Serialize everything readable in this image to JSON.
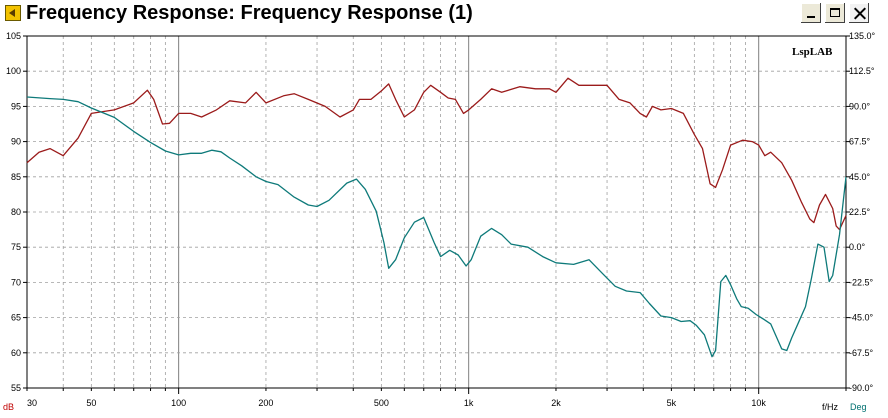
{
  "window": {
    "title": "Frequency Response: Frequency Response (1)",
    "buttons": {
      "minimize": "minimize-icon",
      "maximize": "maximize-icon",
      "close": "close-icon"
    }
  },
  "chart_data": {
    "type": "line",
    "brand_label": "LspLAB",
    "x_unit_label": "f/Hz",
    "y_left_unit": "dB",
    "y_right_unit": "Deg",
    "x_scale": "log",
    "xlim": [
      30,
      20000
    ],
    "ylim_left": [
      55,
      105
    ],
    "ylim_right": [
      -90,
      135
    ],
    "x_tick_labels": [
      {
        "v": 30,
        "t": "30"
      },
      {
        "v": 50,
        "t": "50"
      },
      {
        "v": 100,
        "t": "100"
      },
      {
        "v": 200,
        "t": "200"
      },
      {
        "v": 500,
        "t": "500"
      },
      {
        "v": 1000,
        "t": "1k"
      },
      {
        "v": 2000,
        "t": "2k"
      },
      {
        "v": 5000,
        "t": "5k"
      },
      {
        "v": 10000,
        "t": "10k"
      }
    ],
    "y_left_ticks": [
      55,
      60,
      65,
      70,
      75,
      80,
      85,
      90,
      95,
      100,
      105
    ],
    "y_right_tick_labels": [
      {
        "v": 135,
        "t": "135.0°"
      },
      {
        "v": 112.5,
        "t": "112.5°"
      },
      {
        "v": 90,
        "t": "90.0°"
      },
      {
        "v": 67.5,
        "t": "67.5°"
      },
      {
        "v": 45,
        "t": "45.0°"
      },
      {
        "v": 22.5,
        "t": "22.5°"
      },
      {
        "v": 0,
        "t": "0.0°"
      },
      {
        "v": -22.5,
        "t": "-22.5°"
      },
      {
        "v": -45,
        "t": "-45.0°"
      },
      {
        "v": -67.5,
        "t": "-67.5°"
      },
      {
        "v": -90,
        "t": "-90.0°"
      }
    ],
    "grid": true,
    "colors": {
      "magnitude": "#9b1b1b",
      "phase": "#0e7a7a",
      "grid_major": "#808080",
      "grid_minor": "#a0a0a0"
    },
    "series": [
      {
        "axis": "left",
        "points": [
          [
            30,
            87
          ],
          [
            33,
            88.5
          ],
          [
            36,
            89
          ],
          [
            40,
            88
          ],
          [
            45,
            90.5
          ],
          [
            50,
            94
          ],
          [
            60,
            94.5
          ],
          [
            70,
            95.5
          ],
          [
            78,
            97.3
          ],
          [
            82,
            96
          ],
          [
            88,
            92.5
          ],
          [
            93,
            92.6
          ],
          [
            100,
            94
          ],
          [
            110,
            94
          ],
          [
            120,
            93.5
          ],
          [
            135,
            94.5
          ],
          [
            150,
            95.8
          ],
          [
            170,
            95.5
          ],
          [
            185,
            97
          ],
          [
            200,
            95.5
          ],
          [
            230,
            96.5
          ],
          [
            250,
            96.8
          ],
          [
            280,
            96
          ],
          [
            320,
            95
          ],
          [
            360,
            93.5
          ],
          [
            400,
            94.5
          ],
          [
            420,
            96
          ],
          [
            460,
            96
          ],
          [
            500,
            97.2
          ],
          [
            530,
            98.2
          ],
          [
            560,
            96
          ],
          [
            600,
            93.5
          ],
          [
            650,
            94.5
          ],
          [
            700,
            97
          ],
          [
            740,
            98
          ],
          [
            800,
            97
          ],
          [
            850,
            96.2
          ],
          [
            900,
            96
          ],
          [
            960,
            94
          ],
          [
            1000,
            94.5
          ],
          [
            1100,
            96
          ],
          [
            1200,
            97.5
          ],
          [
            1300,
            97
          ],
          [
            1500,
            97.8
          ],
          [
            1700,
            97.5
          ],
          [
            1900,
            97.5
          ],
          [
            2000,
            97
          ],
          [
            2200,
            99
          ],
          [
            2400,
            98
          ],
          [
            2700,
            98
          ],
          [
            3000,
            98
          ],
          [
            3300,
            96
          ],
          [
            3600,
            95.5
          ],
          [
            3900,
            94
          ],
          [
            4100,
            93.5
          ],
          [
            4300,
            95
          ],
          [
            4600,
            94.5
          ],
          [
            5000,
            94.7
          ],
          [
            5500,
            94
          ],
          [
            6000,
            91
          ],
          [
            6400,
            89
          ],
          [
            6800,
            84
          ],
          [
            7100,
            83.5
          ],
          [
            7500,
            86
          ],
          [
            8000,
            89.5
          ],
          [
            8800,
            90.2
          ],
          [
            9500,
            90
          ],
          [
            10000,
            89.5
          ],
          [
            10500,
            88
          ],
          [
            11000,
            88.5
          ],
          [
            12000,
            87
          ],
          [
            13000,
            84.5
          ],
          [
            14000,
            81.5
          ],
          [
            15000,
            79
          ],
          [
            15500,
            78.5
          ],
          [
            16200,
            81
          ],
          [
            17000,
            82.5
          ],
          [
            18000,
            80.5
          ],
          [
            18500,
            78
          ],
          [
            19000,
            77.5
          ],
          [
            20000,
            79.5
          ]
        ]
      },
      {
        "axis": "right",
        "points": [
          [
            30,
            96
          ],
          [
            36,
            95
          ],
          [
            40,
            94.5
          ],
          [
            45,
            93
          ],
          [
            50,
            89
          ],
          [
            60,
            83
          ],
          [
            70,
            74
          ],
          [
            80,
            67
          ],
          [
            90,
            61.5
          ],
          [
            100,
            59
          ],
          [
            110,
            60
          ],
          [
            120,
            60
          ],
          [
            130,
            62
          ],
          [
            140,
            61
          ],
          [
            150,
            57
          ],
          [
            165,
            52
          ],
          [
            185,
            45
          ],
          [
            200,
            42
          ],
          [
            220,
            40
          ],
          [
            250,
            32
          ],
          [
            280,
            27
          ],
          [
            300,
            26
          ],
          [
            330,
            30
          ],
          [
            380,
            41
          ],
          [
            410,
            43.5
          ],
          [
            440,
            37
          ],
          [
            480,
            23
          ],
          [
            510,
            3
          ],
          [
            530,
            -13.5
          ],
          [
            560,
            -8
          ],
          [
            600,
            6
          ],
          [
            650,
            16
          ],
          [
            700,
            19
          ],
          [
            760,
            3
          ],
          [
            800,
            -6
          ],
          [
            860,
            -2
          ],
          [
            920,
            -5
          ],
          [
            980,
            -12
          ],
          [
            1020,
            -8
          ],
          [
            1100,
            7
          ],
          [
            1200,
            12
          ],
          [
            1300,
            8
          ],
          [
            1400,
            2
          ],
          [
            1600,
            0
          ],
          [
            1800,
            -6
          ],
          [
            2000,
            -10
          ],
          [
            2300,
            -11
          ],
          [
            2600,
            -8
          ],
          [
            2900,
            -17
          ],
          [
            3200,
            -25
          ],
          [
            3500,
            -28
          ],
          [
            3900,
            -29
          ],
          [
            4200,
            -36
          ],
          [
            4600,
            -44
          ],
          [
            5000,
            -45
          ],
          [
            5400,
            -47.5
          ],
          [
            5800,
            -47
          ],
          [
            6100,
            -50
          ],
          [
            6500,
            -56
          ],
          [
            6900,
            -70
          ],
          [
            7100,
            -66
          ],
          [
            7400,
            -22
          ],
          [
            7700,
            -18
          ],
          [
            8000,
            -24
          ],
          [
            8400,
            -33
          ],
          [
            8700,
            -38
          ],
          [
            9200,
            -39
          ],
          [
            9800,
            -43
          ],
          [
            10400,
            -46
          ],
          [
            11000,
            -49
          ],
          [
            12000,
            -65
          ],
          [
            12500,
            -66
          ],
          [
            13000,
            -58
          ],
          [
            13800,
            -47
          ],
          [
            14500,
            -38
          ],
          [
            15200,
            -20
          ],
          [
            16000,
            2
          ],
          [
            16800,
            0
          ],
          [
            17500,
            -22
          ],
          [
            18000,
            -18
          ],
          [
            19000,
            8
          ],
          [
            20000,
            45
          ]
        ]
      }
    ]
  }
}
